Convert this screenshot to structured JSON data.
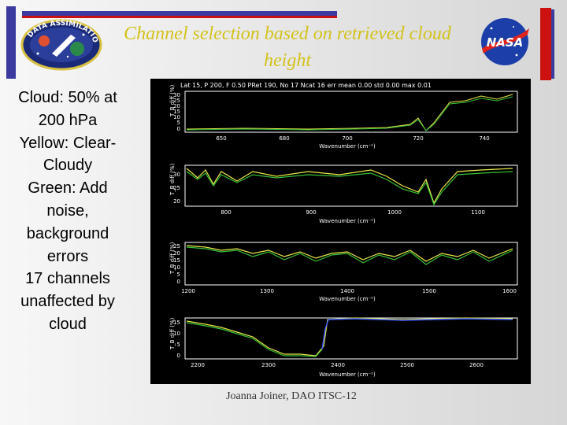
{
  "slide": {
    "title": "Channel selection based on retrieved cloud height",
    "notes": [
      "Cloud: 50% at",
      "200 hPa",
      "Yellow: Clear-",
      "Cloudy",
      "Green: Add",
      "noise,",
      "background",
      "errors",
      "17 channels",
      "unaffected by",
      "cloud"
    ],
    "footer": "Joanna Joiner, DAO ITSC-12",
    "mission_logo_text": "DATA ASSIMILATION OFFICE",
    "nasa_logo_text": "NASA"
  },
  "figure": {
    "header": "Lat 15, P 200, F 0.50 PRet 190, No 17 Ncat 16 err mean 0.00 std 0.00 max 0.01",
    "panels": [
      {
        "ylabel": "T_B diff (%)",
        "xlabel": "Wavenumber (cm⁻¹)",
        "yticks": [
          "30",
          "25",
          "20",
          "15",
          "10",
          "5",
          "0"
        ],
        "xticks": [
          "650",
          "680",
          "700",
          "720",
          "740"
        ]
      },
      {
        "ylabel": "T_B diff (%)",
        "xlabel": "Wavenumber (cm⁻¹)",
        "yticks": [
          "30",
          "25",
          "20"
        ],
        "xticks": [
          "800",
          "900",
          "1000",
          "1100"
        ]
      },
      {
        "ylabel": "T_B diff (%)",
        "xlabel": "Wavenumber (cm⁻¹)",
        "yticks": [
          "25",
          "20",
          "15",
          "10",
          "5",
          "0"
        ],
        "xticks": [
          "1200",
          "1300",
          "1400",
          "1500",
          "1600"
        ]
      },
      {
        "ylabel": "T_B diff (%)",
        "xlabel": "Wavenumber (cm⁻¹)",
        "yticks": [
          "15",
          "10",
          "5",
          "0"
        ],
        "xticks": [
          "2200",
          "2300",
          "2400",
          "2500",
          "2600"
        ]
      }
    ],
    "colors": {
      "clear_cloudy": "#e8e84a",
      "noise": "#36c236",
      "axes": "#ffffff",
      "selected": "#3a5cff"
    }
  }
}
